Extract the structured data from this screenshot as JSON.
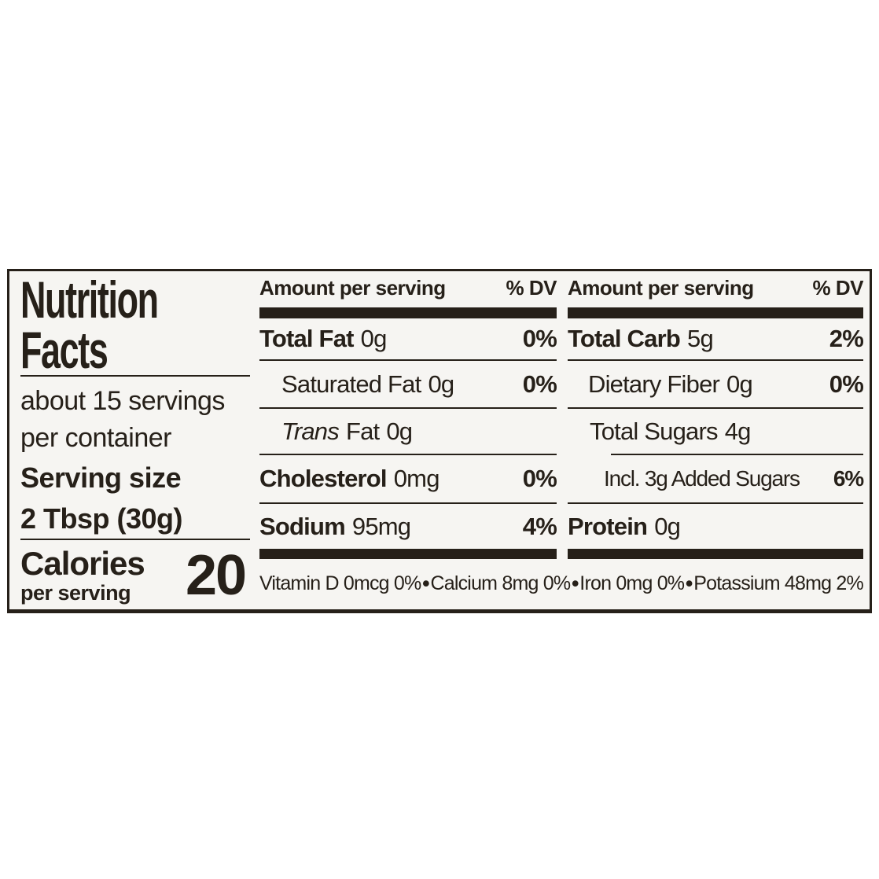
{
  "colors": {
    "ink": "#262019",
    "label_background": "#f6f5f2",
    "page_background": "#ffffff"
  },
  "label": {
    "title": {
      "line1": "Nutrition",
      "line2": "Facts"
    },
    "servings": {
      "line1": "about 15 servings",
      "line2": "per container"
    },
    "serving_size": {
      "label": "Serving size",
      "value": "2 Tbsp (30g)"
    },
    "calories": {
      "label": "Calories",
      "sublabel": "per serving",
      "value": "20"
    },
    "mid": {
      "header_amount": "Amount per serving",
      "header_dv": "% DV",
      "rows": [
        {
          "label": "Total Fat",
          "value": "0g",
          "dv": "0%"
        },
        {
          "label": "Saturated Fat",
          "value": "0g",
          "dv": "0%"
        },
        {
          "label_italic": "Trans",
          "label": "Fat",
          "value": "0g",
          "dv": ""
        },
        {
          "label": "Cholesterol",
          "value": "0mg",
          "dv": "0%"
        },
        {
          "label": "Sodium",
          "value": "95mg",
          "dv": "4%"
        }
      ]
    },
    "right": {
      "header_amount": "Amount per serving",
      "header_dv": "% DV",
      "rows": [
        {
          "label": "Total Carb",
          "value": "5g",
          "dv": "2%"
        },
        {
          "label": "Dietary Fiber",
          "value": "0g",
          "dv": "0%"
        },
        {
          "label": "Total Sugars",
          "value": "4g",
          "dv": ""
        },
        {
          "label": "Incl. 3g Added Sugars",
          "value": "",
          "dv": "6%"
        },
        {
          "label": "Protein",
          "value": "0g",
          "dv": ""
        }
      ]
    },
    "micronutrients": {
      "separator": "•",
      "items": [
        "Vitamin D 0mcg 0%",
        "Calcium 8mg 0%",
        "Iron 0mg 0%",
        "Potassium 48mg 2%"
      ]
    }
  }
}
